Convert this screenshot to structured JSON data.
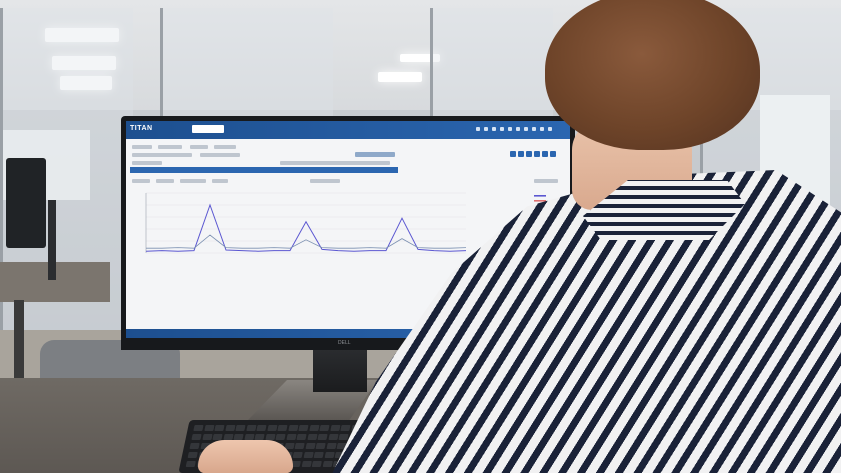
{
  "screen_app": {
    "logo": "TITAN",
    "brand_colors": {
      "header": "#1d4f8f",
      "accent": "#2b66b0"
    }
  },
  "chart_data": {
    "type": "line",
    "title": "",
    "xlabel": "",
    "ylabel": "",
    "ylim": [
      0,
      100
    ],
    "x": [
      0,
      5,
      10,
      15,
      20,
      25,
      30,
      35,
      40,
      45,
      50,
      55,
      60,
      65,
      70,
      75,
      80,
      85,
      90,
      95,
      100
    ],
    "series": [
      {
        "color": "#5b57d1",
        "values": [
          3,
          4,
          3,
          4,
          80,
          5,
          4,
          3,
          4,
          4,
          52,
          6,
          4,
          3,
          4,
          4,
          58,
          6,
          4,
          3,
          4
        ]
      },
      {
        "color": "#7a8fb0",
        "values": [
          8,
          8,
          9,
          8,
          30,
          9,
          8,
          8,
          9,
          8,
          22,
          9,
          8,
          8,
          9,
          8,
          24,
          9,
          8,
          8,
          9
        ]
      }
    ],
    "grid": true,
    "legend": "right"
  },
  "monitor": {
    "brand": "DELL"
  }
}
